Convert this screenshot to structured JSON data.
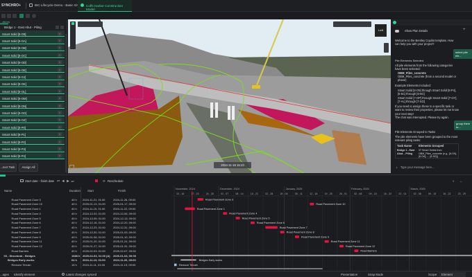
{
  "topbar": {
    "brand": "SYNCHRO+",
    "breadcrumb": "IBC Lifecycle Demo - Basic Civil",
    "active_tab": "Coffs Harbor Construction Model"
  },
  "left_panel": {
    "tab": "...ations",
    "header": "Bridge 1 - East Abut - Piling",
    "items": [
      "Smart Solid [8-O9]",
      "Smart Solid [8-OA]",
      "Smart Solid [8-OB]",
      "Smart Solid [8-OC]",
      "Smart Solid [8-OD]",
      "Smart Solid [8-OE]",
      "Smart Solid [8-OJ]",
      "Smart Solid [8-OK]",
      "Smart Solid [8-OL]",
      "Smart Solid [8-OM]",
      "Smart Solid [8-ON]",
      "Smart Solid [8-OO]",
      "Smart Solid [8-OZ]",
      "Smart Solid [8-P0]",
      "Smart Solid [8-P1]",
      "Smart Solid [8-P2]",
      "Smart Solid [8-P3]",
      "Smart Solid [8-P4]"
    ],
    "remove_label": "×",
    "buttons": {
      "detect": "...tect Task",
      "assign": "Assign All"
    }
  },
  "viewport": {
    "timestamp": "2024-11-18 15:23",
    "cube_label": "Left"
  },
  "copilot": {
    "show_plan": "Show Plan Details",
    "welcome": "Welcome to the Bentley Copilot template. How can help you with your project?",
    "user_msg_1": "select pile ele...",
    "section1_title": "Pile Elements Selected",
    "section1_intro": "All pile elements from the following categories have been selected:",
    "bullets1": [
      "OBM_Piles_concrete",
      "OBM_Piles_concrete (from a second model or phase)"
    ],
    "examples_title": "Example Elements Included:",
    "bullets2": [
      "Smart Solid [8-O9] through Smart Solid [8-P4], [6-5C] through [6-5G]",
      "Smart Solid [7-OP] through Smart Solid [7-OY], [7-AL] through [7-SO]"
    ],
    "follow": "If you need to assign these to a specific task or want to review their properties, please let me know your next step!",
    "interrupted": "The chat was interrupted. Please try again.",
    "user_msg_2": "group them to...",
    "section2_title": "Pile Elements Grouped to Tasks",
    "section2_intro": "The pile elements have been grouped to the most relevant piling tasks:",
    "table_headers": [
      "Task Name",
      "Elements Grouped"
    ],
    "table_row": [
      "Bridge 1 - East Abut. - Piling",
      "37 Smart Solids from OBM_Piles_concrete (e.g., [8-O9], [8-OA], ... [8-SG])"
    ],
    "input_placeholder": "Type your message here..."
  },
  "schedule_toolbar": {
    "date_range": "Start date - finish date",
    "reschedule": "Reschedule",
    "layout_label": "Layout"
  },
  "table": {
    "headers": {
      "name": "Name",
      "duration": "Duration",
      "start": "Start",
      "finish": "Finish"
    },
    "rows": [
      {
        "name": "Road Pavement Zone 3",
        "duration": "40 h",
        "start": "2024-11-21, 01:00",
        "finish": "2024-11-26, 09:00",
        "indent": 3
      },
      {
        "name": "Road Pavement Zone 10",
        "duration": "40 h",
        "start": "2025-01-13, 01:00",
        "finish": "2025-01-17, 09:00",
        "indent": 3
      },
      {
        "name": "Road Pavement Zone 1",
        "duration": "40 h",
        "start": "2024-11-15, 01:00",
        "finish": "2024-11-22, 09:00",
        "indent": 3
      },
      {
        "name": "Road Pavement Zone 4",
        "duration": "40 h",
        "start": "2024-12-03, 01:00",
        "finish": "2024-12-06, 09:00",
        "indent": 3
      },
      {
        "name": "Road Pavement Zone 5",
        "duration": "40 h",
        "start": "2024-12-09, 01:00",
        "finish": "2024-12-13, 09:00",
        "indent": 3
      },
      {
        "name": "Road Pavement Zone 6",
        "duration": "40 h",
        "start": "2024-12-16, 01:00",
        "finish": "2024-12-20, 09:00",
        "indent": 3
      },
      {
        "name": "Road Pavement Zone 7",
        "duration": "40 h",
        "start": "2024-12-23, 01:00",
        "finish": "2024-12-31, 09:00",
        "indent": 3
      },
      {
        "name": "Road Pavement Zone 8",
        "duration": "40 h",
        "start": "2024-12-30, 01:00",
        "finish": "2025-01-03, 09:00",
        "indent": 3
      },
      {
        "name": "Road Pavement Zone 9",
        "duration": "40 h",
        "start": "2025-01-06, 01:00",
        "finish": "2025-01-10, 09:00",
        "indent": 3
      },
      {
        "name": "Road Pavement Zone 11",
        "duration": "40 h",
        "start": "2025-01-20, 01:00",
        "finish": "2025-01-24, 09:00",
        "indent": 3
      },
      {
        "name": "Road Pavement Zone 12",
        "duration": "40 h",
        "start": "2025-01-27, 01:00",
        "finish": "2025-01-31, 09:00",
        "indent": 3
      },
      {
        "name": "Road Barriers",
        "duration": "40 h",
        "start": "2025-02-03, 01:00",
        "finish": "2025-02-07, 09:00",
        "indent": 3
      },
      {
        "name": "03 - Structural - Bridges",
        "duration": "1688 h",
        "start": "2025-02-03, 01:00 (A)",
        "finish": "2026-01-03, 09:00",
        "indent": 1,
        "bold": true
      },
      {
        "name": "Bridges Early works",
        "duration": "64 h",
        "start": "2024-11-13, 01:00",
        "finish": "2024-11-20, 09:00",
        "indent": 2,
        "bold": true
      },
      {
        "name": "Remove Terrain",
        "duration": "16 h",
        "start": "2024-11-11, 01:00",
        "finish": "2024-11-13, 09:00",
        "indent": 3
      }
    ]
  },
  "gantt": {
    "months": [
      "November, 2024",
      "December, 2024",
      "January, 2025",
      "February, 2025",
      "March, 2025"
    ],
    "weeks": [
      "10 - 16",
      "17 - 23",
      "24 - 30",
      "01 - 07",
      "08 - 14",
      "15 - 21",
      "22 - 28",
      "29 - 04",
      "05 - 11",
      "12 - 18",
      "19 - 25",
      "26 - 01",
      "02 - 08",
      "09 - 15",
      "16 - 22",
      "23 - 01",
      "02 - 08",
      "09 - 15",
      "16 - 22",
      "23 - 29"
    ],
    "today": "2024-11-18",
    "bar_color": "#e0163d"
  },
  "status": {
    "left1": "...ages",
    "identify": "Identify element",
    "sync": "Latest changes synced",
    "presentation": "Presentation",
    "snap": "Snap Mode",
    "scope_label": "Scope:",
    "scope_value": "Element"
  }
}
